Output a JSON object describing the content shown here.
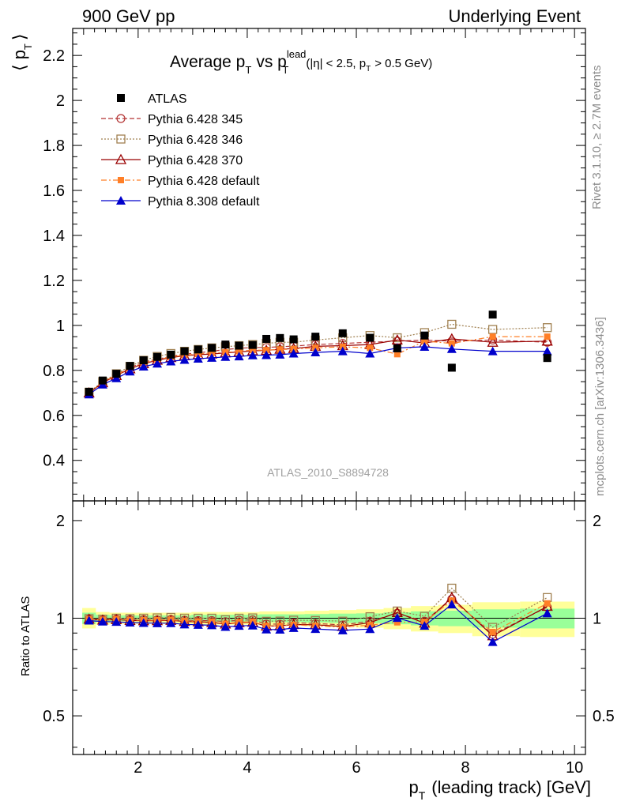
{
  "header": {
    "left": "900 GeV pp",
    "right": "Underlying Event"
  },
  "side_labels": {
    "rivet": "Rivet 3.1.10, ≥ 2.7M events",
    "mcplots": "mcplots.cern.ch [arXiv:1306.3436]"
  },
  "analysis_id": "ATLAS_2010_S8894728",
  "chart_data": {
    "type": "scatter",
    "title": {
      "main": "Average p",
      "sub_T": "T",
      "vs": "vs p",
      "sup_lead": "lead",
      "sub_T2": "T",
      "cut_a": "(|η| < 2.5, p",
      "cut_sub": "T",
      "cut_b": "> 0.5 GeV)"
    },
    "ylabel_main": {
      "open": "⟨ p",
      "sub": "T",
      "close": "⟩"
    },
    "ylabel_ratio": "Ratio to ATLAS",
    "xlabel": {
      "p": "p",
      "sub": "T",
      "rest": "(leading track) [GeV]"
    },
    "xlim": [
      0.8,
      10.2
    ],
    "ylim_main": [
      0.22,
      2.32
    ],
    "ylim_ratio": [
      0.38,
      2.3
    ],
    "ratio_scale": "log",
    "x_ticks": [
      "2",
      "4",
      "6",
      "8",
      "10"
    ],
    "y_ticks_main": [
      "0.4",
      "0.6",
      "0.8",
      "1",
      "1.2",
      "1.4",
      "1.6",
      "1.8",
      "2",
      "2.2"
    ],
    "y_ticks_ratio": [
      "0.5",
      "1",
      "2"
    ],
    "legend_position": "top-left",
    "x": [
      1.1,
      1.35,
      1.6,
      1.85,
      2.1,
      2.35,
      2.6,
      2.85,
      3.1,
      3.35,
      3.6,
      3.85,
      4.1,
      4.35,
      4.6,
      4.85,
      5.25,
      5.75,
      6.25,
      6.75,
      7.25,
      7.75,
      8.5,
      9.5
    ],
    "series": [
      {
        "name": "ATLAS",
        "color": "#000000",
        "marker": "filled-square",
        "line": "none",
        "values": [
          0.705,
          0.755,
          0.785,
          0.82,
          0.845,
          0.86,
          0.87,
          0.885,
          0.893,
          0.9,
          0.915,
          0.91,
          0.913,
          0.94,
          0.944,
          0.938,
          0.95,
          0.965,
          0.945,
          0.898,
          0.955,
          0.812,
          1.048,
          0.855
        ]
      },
      {
        "name": "Pythia 6.428 345",
        "color": "#b33333",
        "marker": "open-circle",
        "line": "dashed",
        "values": [
          0.7,
          0.747,
          0.78,
          0.812,
          0.837,
          0.85,
          0.862,
          0.873,
          0.878,
          0.885,
          0.893,
          0.898,
          0.902,
          0.902,
          0.905,
          0.908,
          0.915,
          0.92,
          0.925,
          0.93,
          0.935,
          0.93,
          0.935,
          0.925
        ]
      },
      {
        "name": "Pythia 6.428 346",
        "color": "#a08050",
        "marker": "open-square",
        "line": "dotted",
        "values": [
          0.703,
          0.75,
          0.785,
          0.818,
          0.845,
          0.862,
          0.875,
          0.885,
          0.893,
          0.9,
          0.905,
          0.91,
          0.915,
          0.92,
          0.925,
          0.925,
          0.935,
          0.945,
          0.955,
          0.945,
          0.968,
          1.005,
          0.982,
          0.99
        ]
      },
      {
        "name": "Pythia 6.428 370",
        "color": "#990000",
        "marker": "open-triangle",
        "line": "solid",
        "values": [
          0.7,
          0.745,
          0.777,
          0.807,
          0.83,
          0.845,
          0.857,
          0.865,
          0.87,
          0.873,
          0.878,
          0.882,
          0.887,
          0.889,
          0.894,
          0.897,
          0.907,
          0.91,
          0.915,
          0.935,
          0.922,
          0.94,
          0.925,
          0.93
        ]
      },
      {
        "name": "Pythia 6.428 default",
        "color": "#ff7f27",
        "marker": "filled-square-small",
        "line": "dashdot",
        "values": [
          0.7,
          0.747,
          0.78,
          0.81,
          0.833,
          0.848,
          0.86,
          0.868,
          0.873,
          0.878,
          0.88,
          0.885,
          0.89,
          0.89,
          0.893,
          0.895,
          0.9,
          0.905,
          0.9,
          0.872,
          0.93,
          0.92,
          0.95,
          0.95
        ]
      },
      {
        "name": "Pythia 8.308 default",
        "color": "#0000cc",
        "marker": "filled-triangle",
        "line": "solid",
        "values": [
          0.693,
          0.737,
          0.765,
          0.795,
          0.817,
          0.83,
          0.84,
          0.847,
          0.852,
          0.856,
          0.86,
          0.862,
          0.867,
          0.868,
          0.87,
          0.875,
          0.88,
          0.885,
          0.875,
          0.9,
          0.905,
          0.895,
          0.885,
          0.885
        ]
      }
    ],
    "bands": {
      "yellow_low": [
        0.93,
        0.955,
        0.96,
        0.96,
        0.96,
        0.96,
        0.96,
        0.96,
        0.955,
        0.955,
        0.955,
        0.955,
        0.955,
        0.95,
        0.95,
        0.95,
        0.945,
        0.94,
        0.935,
        0.925,
        0.91,
        0.9,
        0.88,
        0.875
      ],
      "yellow_high": [
        1.075,
        1.045,
        1.04,
        1.04,
        1.04,
        1.04,
        1.04,
        1.04,
        1.045,
        1.045,
        1.045,
        1.045,
        1.045,
        1.05,
        1.05,
        1.05,
        1.055,
        1.06,
        1.065,
        1.075,
        1.09,
        1.1,
        1.12,
        1.125
      ],
      "green_low": [
        0.96,
        0.975,
        0.98,
        0.98,
        0.98,
        0.98,
        0.98,
        0.98,
        0.975,
        0.975,
        0.975,
        0.975,
        0.975,
        0.972,
        0.972,
        0.972,
        0.97,
        0.967,
        0.965,
        0.958,
        0.95,
        0.945,
        0.935,
        0.93
      ],
      "green_high": [
        1.04,
        1.025,
        1.02,
        1.02,
        1.02,
        1.02,
        1.02,
        1.02,
        1.025,
        1.025,
        1.025,
        1.025,
        1.025,
        1.028,
        1.028,
        1.028,
        1.03,
        1.033,
        1.035,
        1.042,
        1.05,
        1.055,
        1.065,
        1.07
      ]
    }
  }
}
